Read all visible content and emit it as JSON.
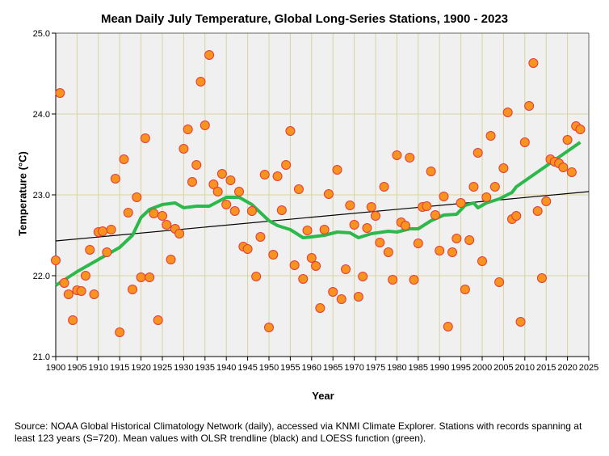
{
  "chart_data": {
    "type": "scatter",
    "title": "Mean Daily July Temperature, Global Long-Series Stations, 1900 - 2023",
    "xlabel": "Year",
    "ylabel": "Temperature (°C)",
    "xlim": [
      1900,
      2025
    ],
    "ylim": [
      21.0,
      25.0
    ],
    "xticks": [
      "1900",
      "1905",
      "1910",
      "1915",
      "1920",
      "1925",
      "1930",
      "1935",
      "1940",
      "1945",
      "1950",
      "1955",
      "1960",
      "1965",
      "1970",
      "1975",
      "1980",
      "1985",
      "1990",
      "1995",
      "2000",
      "2005",
      "2010",
      "2015",
      "2020",
      "2025"
    ],
    "yticks": [
      "21.0",
      "22.0",
      "23.0",
      "24.0",
      "25.0"
    ],
    "grid": true,
    "colors": {
      "point_fill": "#f7941d",
      "point_stroke": "#e8383d",
      "loess": "#2db84b",
      "trend": "#000000",
      "plot_bg": "#f0f0f0",
      "grid": "#d9d3a0"
    },
    "x_start": 1900,
    "values": [
      22.19,
      24.26,
      21.91,
      21.77,
      21.45,
      21.82,
      21.81,
      22.0,
      22.32,
      21.77,
      22.54,
      22.55,
      22.29,
      22.57,
      23.2,
      21.3,
      23.44,
      22.78,
      21.83,
      22.97,
      21.98,
      23.7,
      21.98,
      22.77,
      21.45,
      22.74,
      22.63,
      22.2,
      22.58,
      22.52,
      23.57,
      23.81,
      23.16,
      23.37,
      24.4,
      23.86,
      24.73,
      23.13,
      23.04,
      23.26,
      22.88,
      23.18,
      22.8,
      23.04,
      22.36,
      22.33,
      22.8,
      21.99,
      22.48,
      23.25,
      21.36,
      22.26,
      23.23,
      22.81,
      23.37,
      23.79,
      22.13,
      23.07,
      21.96,
      22.56,
      22.22,
      22.12,
      21.6,
      22.57,
      23.01,
      21.8,
      23.31,
      21.71,
      22.08,
      22.87,
      22.63,
      21.74,
      21.99,
      22.59,
      22.85,
      22.74,
      22.41,
      23.1,
      22.29,
      21.95,
      23.49,
      22.66,
      22.62,
      23.46,
      21.95,
      22.4,
      22.85,
      22.86,
      23.29,
      22.75,
      22.31,
      22.98,
      21.37,
      22.29,
      22.46,
      22.9,
      21.83,
      22.44,
      23.1,
      23.52,
      22.18,
      22.97,
      23.73,
      23.1,
      21.92,
      23.33,
      24.02,
      22.7,
      22.74,
      21.43,
      23.65,
      24.1,
      24.63,
      22.8,
      21.97,
      22.92,
      23.44,
      23.41,
      23.39,
      23.34,
      23.68,
      23.28,
      23.85,
      23.81
    ],
    "loess": [
      [
        1900,
        21.88
      ],
      [
        1905,
        22.05
      ],
      [
        1910,
        22.2
      ],
      [
        1915,
        22.35
      ],
      [
        1918,
        22.5
      ],
      [
        1920,
        22.72
      ],
      [
        1922,
        22.82
      ],
      [
        1925,
        22.88
      ],
      [
        1928,
        22.9
      ],
      [
        1930,
        22.84
      ],
      [
        1933,
        22.86
      ],
      [
        1936,
        22.86
      ],
      [
        1940,
        22.97
      ],
      [
        1943,
        22.97
      ],
      [
        1946,
        22.88
      ],
      [
        1948,
        22.78
      ],
      [
        1950,
        22.68
      ],
      [
        1952,
        22.62
      ],
      [
        1955,
        22.57
      ],
      [
        1958,
        22.47
      ],
      [
        1960,
        22.48
      ],
      [
        1963,
        22.5
      ],
      [
        1966,
        22.54
      ],
      [
        1969,
        22.53
      ],
      [
        1971,
        22.47
      ],
      [
        1974,
        22.52
      ],
      [
        1978,
        22.55
      ],
      [
        1980,
        22.54
      ],
      [
        1983,
        22.58
      ],
      [
        1985,
        22.58
      ],
      [
        1988,
        22.68
      ],
      [
        1991,
        22.75
      ],
      [
        1994,
        22.76
      ],
      [
        1996,
        22.87
      ],
      [
        1998,
        22.9
      ],
      [
        1999,
        22.84
      ],
      [
        2001,
        22.9
      ],
      [
        2004,
        22.95
      ],
      [
        2007,
        23.03
      ],
      [
        2008,
        23.1
      ],
      [
        2023,
        23.65
      ]
    ],
    "trend": [
      [
        1900,
        22.43
      ],
      [
        2025,
        23.04
      ]
    ]
  },
  "source": "Source: NOAA Global Historical Climatology Network (daily), accessed via KNMI Climate Explorer. Stations with records spanning at least 123 years (S=720). Mean values with OLSR trendline (black) and LOESS function (green)."
}
